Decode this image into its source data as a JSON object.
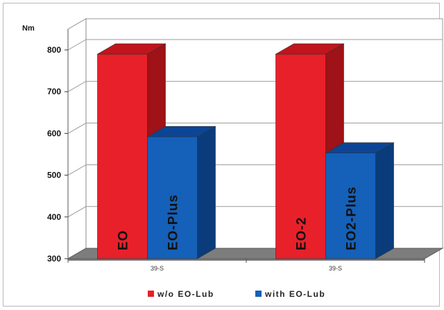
{
  "chart_data": {
    "type": "bar",
    "ylabel": "Nm",
    "ylim": [
      300,
      800
    ],
    "yticks": [
      300,
      400,
      500,
      600,
      700,
      800
    ],
    "categories": [
      "39-S",
      "39-S"
    ],
    "series": [
      {
        "name": "w/o EO-Lub",
        "color": "#e8202a",
        "side_color": "#9e1218",
        "top_color": "#c0151c",
        "values": [
          790,
          790
        ],
        "bar_labels": [
          "EO",
          "EO-2"
        ]
      },
      {
        "name": "with EO-Lub",
        "color": "#1560b8",
        "side_color": "#0a3c7c",
        "top_color": "#0c4596",
        "values": [
          592,
          553
        ],
        "bar_labels": [
          "EO-Plus",
          "EO2-Plus"
        ]
      }
    ],
    "grid": true,
    "legend_position": "bottom"
  }
}
